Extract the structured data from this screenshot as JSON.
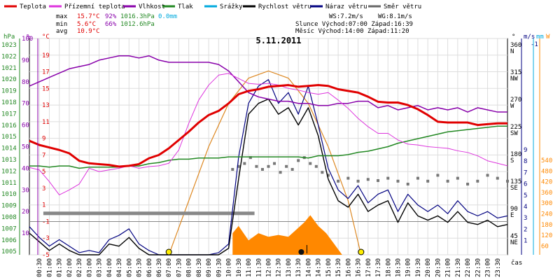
{
  "chart_data": {
    "type": "line",
    "title": "5.11.2011",
    "legend": [
      {
        "name": "Teplota",
        "color": "#e00000"
      },
      {
        "name": "Přízemní teplota",
        "color": "#dd33dd"
      },
      {
        "name": "Vlhkost",
        "color": "#8800aa"
      },
      {
        "name": "Tlak",
        "color": "#228822"
      },
      {
        "name": "Srážky",
        "color": "#00aadd"
      },
      {
        "name": "Rychlost větru",
        "color": "#000000"
      },
      {
        "name": "Náraz větru",
        "color": "#000080"
      },
      {
        "name": "Směr větru",
        "color": "#666666"
      }
    ],
    "stats": {
      "max_label": "max",
      "max_temp": "15.7°C",
      "max_hum": "92%",
      "max_press": "1016.3hPa",
      "precip": "0.0mm",
      "min_label": "min",
      "min_temp": "5.6°C",
      "min_hum": "66%",
      "min_press": "1012.6hPa",
      "avg_label": "avg",
      "avg_temp": "10.9°C",
      "ws": "WS:7.2m/s",
      "wg": "WG:8.1m/s",
      "sun": "Slunce Východ:07:00  Západ:16:39",
      "moon": "Měsíc  Východ:14:00  Západ:11:20"
    },
    "axes": {
      "hpa_label": "hPa",
      "pct_label": "%",
      "c_label": "°C",
      "deg_label": "°",
      "ms_label": "m/s",
      "mm_label": "mm",
      "w_label": "W",
      "hpa_ticks": [
        "1023",
        "1022",
        "1021",
        "1020",
        "1019",
        "1018",
        "1017",
        "1016",
        "1015",
        "1014",
        "1013",
        "1012",
        "1011",
        "1010",
        "1009",
        "1008",
        "1007",
        "1006",
        "1005"
      ],
      "pct_ticks": [
        "100",
        "90",
        "80",
        "70",
        "60",
        "50",
        "40",
        "30",
        "20",
        "10"
      ],
      "c_ticks": [
        "19",
        "17",
        "15",
        "13",
        "11",
        "9",
        "7",
        "5",
        "3",
        "1",
        "-1",
        "-3",
        "-5"
      ],
      "dir_ticks": [
        "360",
        "315",
        "270",
        "225",
        "180",
        "135",
        "90",
        "45"
      ],
      "dir_names": [
        "N",
        "NW",
        "W",
        "SW",
        "S",
        "SE",
        "E",
        "NE"
      ],
      "ms_ticks": [
        "9",
        "8",
        "7",
        "6",
        "5",
        "4",
        "3",
        "2",
        "1"
      ],
      "ms_top": "-1",
      "w_ticks": [
        "540",
        "480",
        "420",
        "360",
        "300",
        "240",
        "180",
        "120",
        "60"
      ],
      "time_label": "čas",
      "time_ticks": [
        "00:30",
        "01:00",
        "01:30",
        "02:00",
        "02:30",
        "03:00",
        "03:30",
        "04:00",
        "04:30",
        "05:00",
        "05:30",
        "06:00",
        "06:30",
        "07:00",
        "07:30",
        "08:00",
        "08:30",
        "09:00",
        "09:30",
        "10:00",
        "10:30",
        "11:00",
        "11:30",
        "12:00",
        "12:30",
        "13:00",
        "13:30",
        "14:00",
        "14:30",
        "15:00",
        "15:30",
        "16:00",
        "16:30",
        "17:00",
        "17:30",
        "18:00",
        "18:30",
        "19:00",
        "19:30",
        "20:00",
        "20:30",
        "21:00",
        "21:30",
        "22:00",
        "22:30",
        "23:00",
        "23:30"
      ]
    },
    "x_range_hours": [
      0,
      24
    ],
    "temp_c": {
      "ylim": [
        -5,
        21
      ],
      "x": [
        0,
        0.5,
        1,
        1.5,
        2,
        2.5,
        3,
        3.5,
        4,
        4.5,
        5,
        5.5,
        6,
        6.5,
        7,
        7.5,
        8,
        8.5,
        9,
        9.5,
        10,
        10.5,
        11,
        11.5,
        12,
        12.5,
        13,
        13.5,
        14,
        14.5,
        15,
        15.5,
        16,
        16.5,
        17,
        17.5,
        18,
        18.5,
        19,
        19.5,
        20,
        20.5,
        21,
        21.5,
        22,
        22.5,
        23,
        23.5,
        24
      ],
      "y": [
        8.7,
        8.2,
        7.9,
        7.6,
        7.2,
        6.3,
        6.0,
        5.9,
        5.8,
        5.6,
        5.7,
        5.9,
        6.6,
        7.0,
        7.8,
        8.8,
        9.8,
        10.9,
        11.8,
        12.3,
        13.2,
        14.3,
        14.7,
        14.9,
        15.2,
        15.3,
        15.4,
        15.2,
        15.3,
        15.4,
        15.3,
        14.9,
        14.7,
        14.5,
        14.0,
        13.4,
        13.3,
        13.3,
        13.0,
        12.5,
        11.8,
        11.0,
        10.9,
        10.9,
        10.9,
        10.6,
        10.7,
        10.8,
        10.8
      ]
    },
    "ground_temp_c": {
      "x": [
        0,
        0.5,
        1,
        1.5,
        2,
        2.5,
        3,
        3.5,
        4,
        4.5,
        5,
        5.5,
        6,
        6.5,
        7,
        7.5,
        8,
        8.5,
        9,
        9.5,
        10,
        10.5,
        11,
        11.5,
        12,
        12.5,
        13,
        13.5,
        14,
        14.5,
        15,
        15.5,
        16,
        16.5,
        17,
        17.5,
        18,
        18.5,
        19,
        19.5,
        20,
        20.5,
        21,
        21.5,
        22,
        22.5,
        23,
        23.5,
        24
      ],
      "y": [
        5.5,
        5.2,
        3.8,
        2.2,
        2.8,
        3.5,
        5.4,
        5.0,
        5.2,
        5.4,
        5.7,
        5.4,
        5.6,
        5.7,
        6.0,
        7.6,
        10.8,
        13.6,
        15.4,
        16.6,
        16.8,
        16.2,
        15.6,
        15.5,
        15.6,
        15.4,
        15.0,
        14.8,
        14.5,
        14.3,
        14.5,
        13.6,
        12.6,
        11.4,
        10.4,
        9.6,
        9.6,
        8.8,
        8.3,
        8.2,
        8.0,
        7.9,
        7.8,
        7.5,
        7.3,
        6.9,
        6.3,
        6.0,
        5.7
      ]
    },
    "humidity_pct": {
      "ylim": [
        0,
        100
      ],
      "x": [
        0,
        0.5,
        1,
        1.5,
        2,
        2.5,
        3,
        3.5,
        4,
        4.5,
        5,
        5.5,
        6,
        6.5,
        7,
        7.5,
        8,
        8.5,
        9,
        9.5,
        10,
        10.5,
        11,
        11.5,
        12,
        12.5,
        13,
        13.5,
        14,
        14.5,
        15,
        15.5,
        16,
        16.5,
        17,
        17.5,
        18,
        18.5,
        19,
        19.5,
        20,
        20.5,
        21,
        21.5,
        22,
        22.5,
        23,
        23.5,
        24
      ],
      "y": [
        78,
        80,
        82,
        84,
        86,
        87,
        88,
        90,
        91,
        92,
        92,
        91,
        92,
        90,
        89,
        89,
        89,
        89,
        89,
        88,
        85,
        80,
        75,
        73,
        72,
        71,
        71,
        70,
        70,
        69,
        69,
        70,
        70,
        71,
        71,
        68,
        69,
        67,
        68,
        69,
        67,
        68,
        67,
        68,
        66,
        68,
        67,
        66,
        66
      ]
    },
    "pressure_hpa": {
      "ylim": [
        1005,
        1024
      ],
      "x": [
        0,
        0.5,
        1,
        1.5,
        2,
        2.5,
        3,
        3.5,
        4,
        4.5,
        5,
        5.5,
        6,
        6.5,
        7,
        7.5,
        8,
        8.5,
        9,
        9.5,
        10,
        10.5,
        11,
        11.5,
        12,
        12.5,
        13,
        13.5,
        14,
        14.5,
        15,
        15.5,
        16,
        16.5,
        17,
        17.5,
        18,
        18.5,
        19,
        19.5,
        20,
        20.5,
        21,
        21.5,
        22,
        22.5,
        23,
        23.5,
        24
      ],
      "y": [
        1012.8,
        1012.8,
        1012.7,
        1012.8,
        1012.8,
        1012.6,
        1012.7,
        1012.7,
        1012.7,
        1012.7,
        1012.8,
        1012.8,
        1013.0,
        1013.1,
        1013.3,
        1013.4,
        1013.4,
        1013.5,
        1013.5,
        1013.5,
        1013.6,
        1013.6,
        1013.6,
        1013.6,
        1013.6,
        1013.6,
        1013.6,
        1013.6,
        1013.5,
        1013.7,
        1013.7,
        1013.7,
        1013.8,
        1014.0,
        1014.1,
        1014.3,
        1014.5,
        1014.8,
        1015.0,
        1015.2,
        1015.4,
        1015.6,
        1015.8,
        1015.9,
        1016.0,
        1016.1,
        1016.2,
        1016.3,
        1016.3
      ]
    },
    "wind_ms": {
      "ylim": [
        0,
        10
      ],
      "x": [
        0,
        0.5,
        1,
        1.5,
        2,
        2.5,
        3,
        3.5,
        4,
        4.5,
        5,
        5.5,
        6,
        6.5,
        7,
        7.5,
        8,
        8.5,
        9,
        9.5,
        10,
        10.5,
        11,
        11.5,
        12,
        12.5,
        13,
        13.5,
        14,
        14.5,
        15,
        15.5,
        16,
        16.5,
        17,
        17.5,
        18,
        18.5,
        19,
        19.5,
        20,
        20.5,
        21,
        21.5,
        22,
        22.5,
        23,
        23.5,
        24
      ],
      "y": [
        1.0,
        0.6,
        0.2,
        0.5,
        0.2,
        0.0,
        0.0,
        0.0,
        0.5,
        0.4,
        0.8,
        0.3,
        0.0,
        0.0,
        0.0,
        0.0,
        0.0,
        0.0,
        0.0,
        0.0,
        0.3,
        3.5,
        6.5,
        7.0,
        7.2,
        6.5,
        6.8,
        6.0,
        6.8,
        5.5,
        3.5,
        2.5,
        2.2,
        2.8,
        2.0,
        2.3,
        2.5,
        1.5,
        2.4,
        1.8,
        1.6,
        1.8,
        1.5,
        2.0,
        1.5,
        1.4,
        1.6,
        1.3,
        1.4
      ]
    },
    "gust_ms": {
      "x": [
        0,
        0.5,
        1,
        1.5,
        2,
        2.5,
        3,
        3.5,
        4,
        4.5,
        5,
        5.5,
        6,
        6.5,
        7,
        7.5,
        8,
        8.5,
        9,
        9.5,
        10,
        10.5,
        11,
        11.5,
        12,
        12.5,
        13,
        13.5,
        14,
        14.5,
        15,
        15.5,
        16,
        16.5,
        17,
        17.5,
        18,
        18.5,
        19,
        19.5,
        20,
        20.5,
        21,
        21.5,
        22,
        22.5,
        23,
        23.5,
        24
      ],
      "y": [
        1.3,
        0.8,
        0.4,
        0.7,
        0.4,
        0.1,
        0.2,
        0.1,
        0.7,
        0.9,
        1.2,
        0.5,
        0.2,
        0.0,
        0.0,
        0.0,
        0.0,
        0.0,
        0.0,
        0.1,
        0.5,
        4.5,
        7.0,
        7.8,
        8.1,
        7.0,
        7.5,
        6.5,
        7.8,
        6.0,
        4.0,
        3.0,
        2.6,
        3.2,
        2.4,
        2.8,
        3.0,
        2.0,
        2.8,
        2.3,
        2.0,
        2.3,
        1.9,
        2.5,
        2.0,
        1.8,
        2.0,
        1.7,
        1.8
      ]
    },
    "wind_dir_deg": {
      "x": [
        10.2,
        10.5,
        10.8,
        11.1,
        11.4,
        11.7,
        12.0,
        12.3,
        12.6,
        12.9,
        13.2,
        13.5,
        13.8,
        14.1,
        14.4,
        14.7,
        15.0,
        15.5,
        16.0,
        16.5,
        17.0,
        17.5,
        18.0,
        18.5,
        19.0,
        19.5,
        20.0,
        20.5,
        21.0,
        21.5,
        22.0,
        22.5,
        23.0,
        23.5,
        24
      ],
      "y": [
        145,
        150,
        155,
        165,
        150,
        145,
        150,
        155,
        140,
        150,
        145,
        160,
        165,
        155,
        150,
        140,
        135,
        125,
        130,
        125,
        128,
        126,
        130,
        125,
        120,
        130,
        125,
        135,
        125,
        130,
        120,
        125,
        135,
        130,
        125
      ]
    },
    "solar_w": {
      "ylim": [
        0,
        600
      ],
      "x": [
        10.2,
        10.5,
        11.0,
        11.5,
        12.0,
        12.5,
        13.0,
        13.4,
        13.8,
        14.1,
        14.5,
        14.9,
        15.3,
        15.7
      ],
      "y": [
        60,
        80,
        40,
        60,
        50,
        55,
        50,
        70,
        90,
        110,
        80,
        60,
        30,
        0
      ]
    },
    "sun_theory_w": {
      "x": [
        7.0,
        8,
        9,
        10,
        11,
        12,
        13,
        14,
        15,
        16,
        16.65
      ],
      "y": [
        0,
        150,
        300,
        420,
        490,
        510,
        490,
        420,
        300,
        150,
        0
      ]
    },
    "markers": {
      "sunrise_h": 7.0,
      "sunset_h": 16.65,
      "moonset_h": 11.33,
      "moonrise_h": 14.0,
      "note": "0.0mm"
    }
  }
}
